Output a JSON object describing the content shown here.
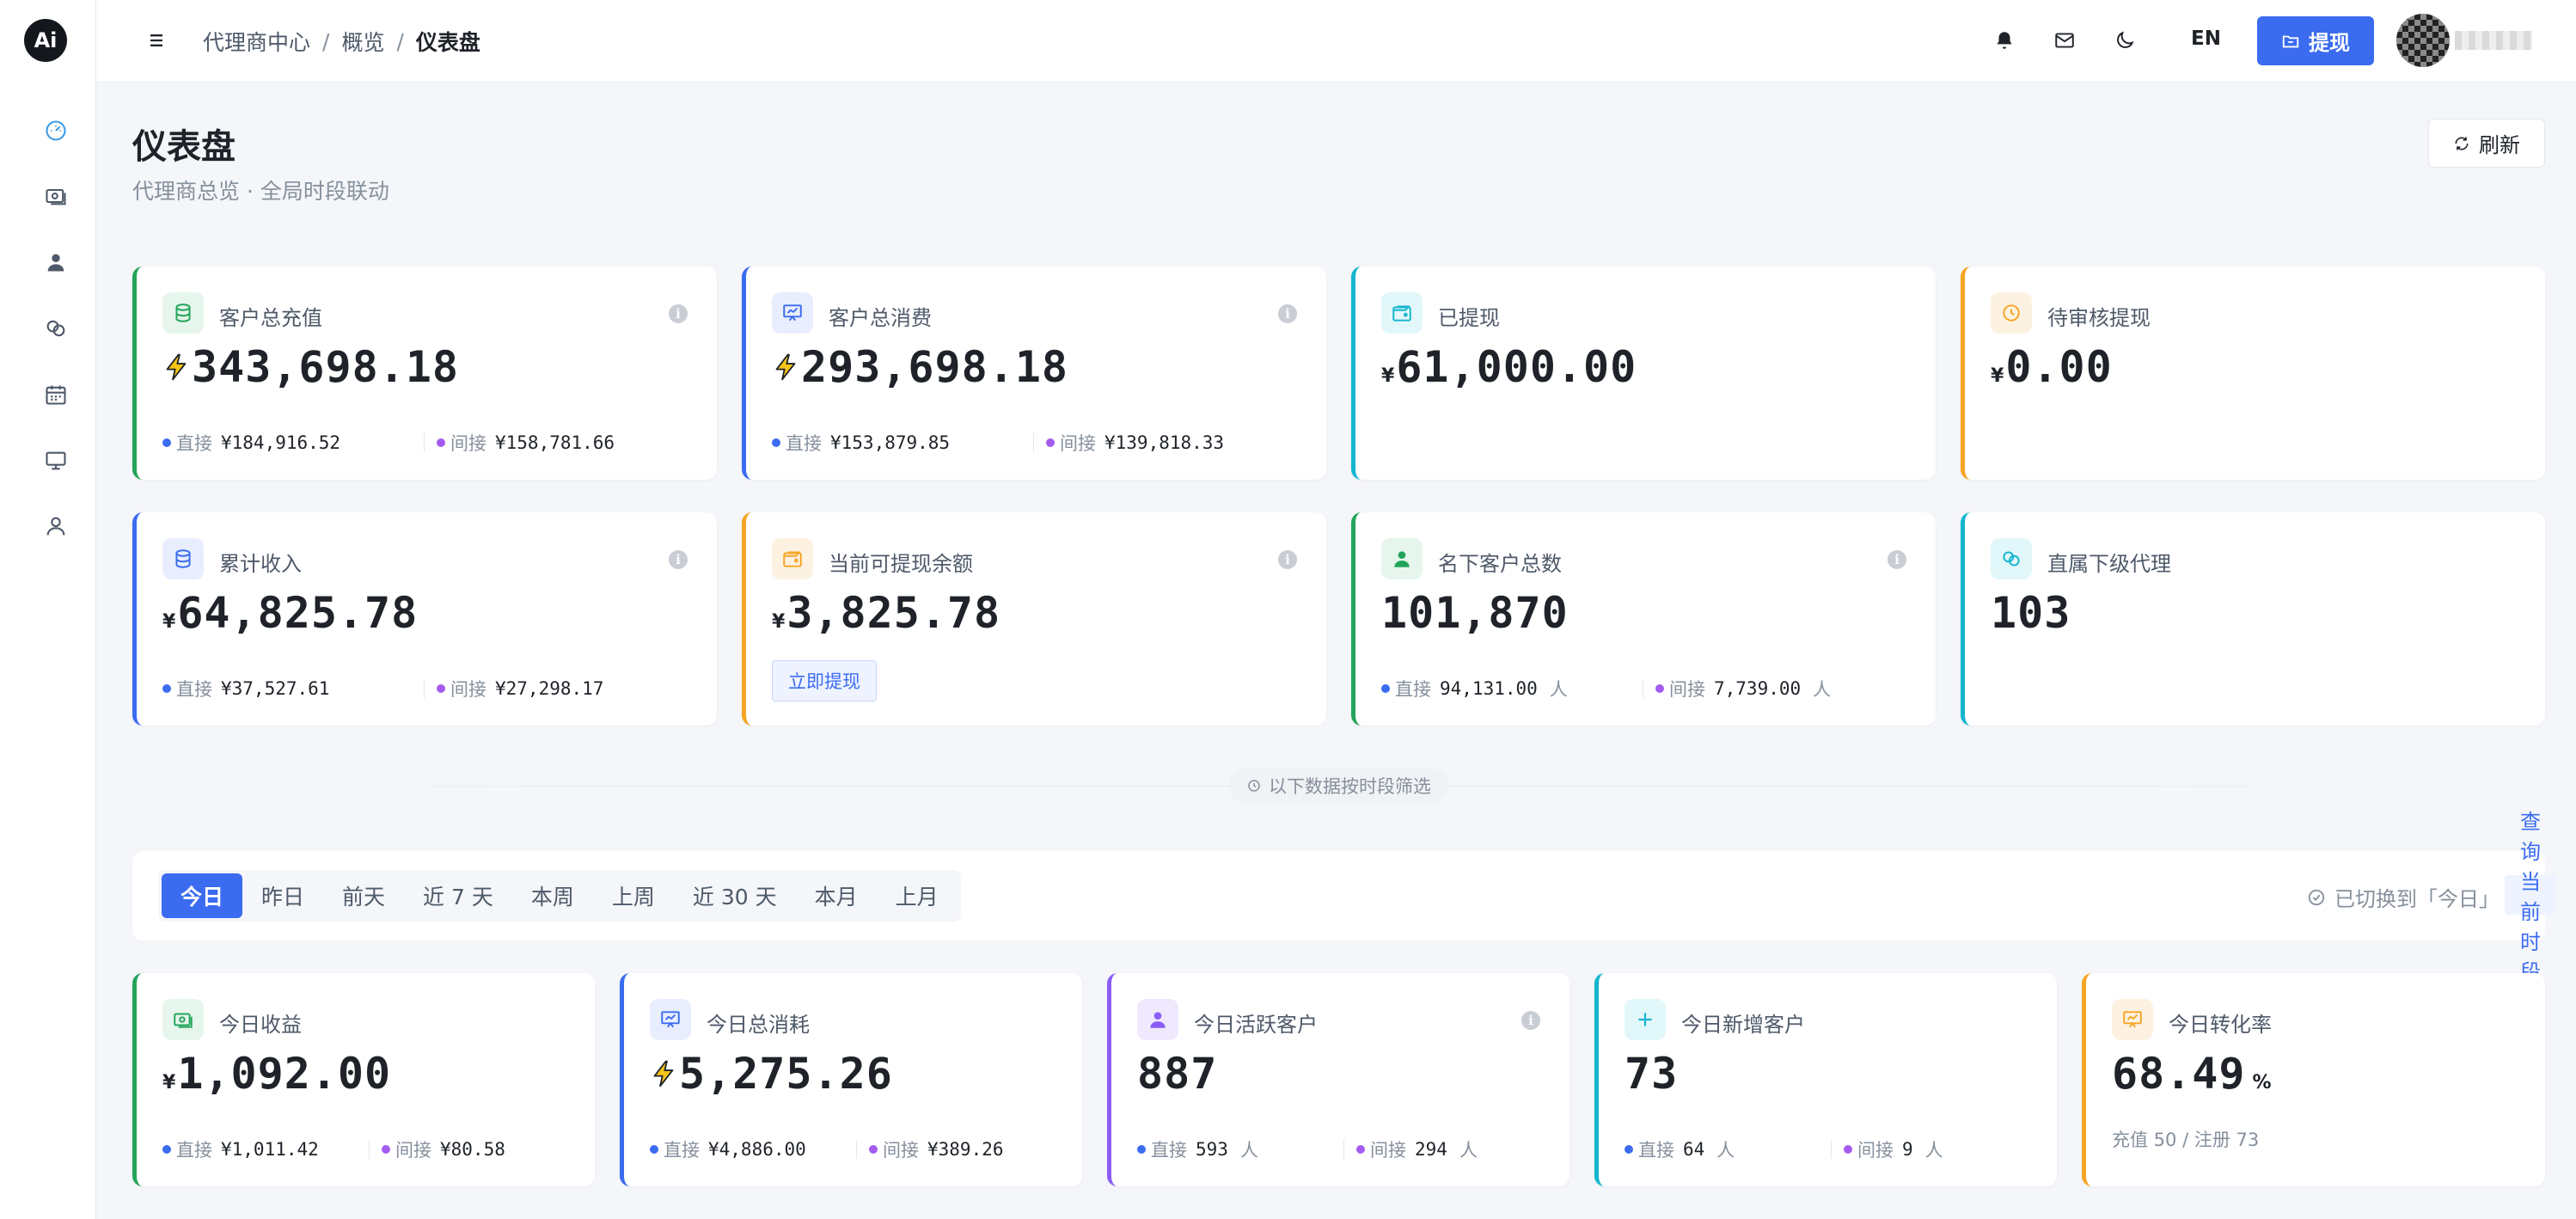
{
  "app": {
    "logo_text": "Ai"
  },
  "colors": {
    "accent": "#3b6cf0",
    "green": "#22a55a",
    "blue": "#3b6cf0",
    "cyan": "#13b5cf",
    "orange": "#f5a524",
    "purple": "#8b5cf6",
    "direct_dot": "#3b6cf0",
    "indirect_dot": "#a45cf0"
  },
  "sidebar": {
    "items": [
      {
        "name": "dashboard",
        "icon": "gauge-icon",
        "active": true
      },
      {
        "name": "finance",
        "icon": "cash-icon"
      },
      {
        "name": "customers",
        "icon": "user-icon"
      },
      {
        "name": "agents",
        "icon": "link-icon"
      },
      {
        "name": "calendar",
        "icon": "calendar-icon"
      },
      {
        "name": "monitor",
        "icon": "monitor-icon"
      },
      {
        "name": "profile",
        "icon": "user-outline-icon"
      }
    ]
  },
  "header": {
    "breadcrumb": [
      "代理商中心",
      "概览",
      "仪表盘"
    ],
    "separator": "/",
    "lang": "EN",
    "withdraw_label": "提现"
  },
  "page": {
    "title": "仪表盘",
    "subtitle": "代理商总览 · 全局时段联动",
    "refresh_label": "刷新"
  },
  "stats": [
    {
      "label": "客户总充值",
      "prefix": "bolt",
      "value": "343,698.18",
      "direct_label": "直接",
      "direct": "¥184,916.52",
      "indirect_label": "间接",
      "indirect": "¥158,781.66"
    },
    {
      "label": "客户总消费",
      "prefix": "bolt",
      "value": "293,698.18",
      "direct_label": "直接",
      "direct": "¥153,879.85",
      "indirect_label": "间接",
      "indirect": "¥139,818.33"
    },
    {
      "label": "已提现",
      "prefix": "¥",
      "value": "61,000.00"
    },
    {
      "label": "待审核提现",
      "prefix": "¥",
      "value": "0.00"
    },
    {
      "label": "累计收入",
      "prefix": "¥",
      "value": "64,825.78",
      "direct_label": "直接",
      "direct": "¥37,527.61",
      "indirect_label": "间接",
      "indirect": "¥27,298.17"
    },
    {
      "label": "当前可提现余额",
      "prefix": "¥",
      "value": "3,825.78",
      "button": "立即提现"
    },
    {
      "label": "名下客户总数",
      "value": "101,870",
      "direct_label": "直接",
      "direct": "94,131.00",
      "direct_unit": "人",
      "indirect_label": "间接",
      "indirect": "7,739.00",
      "indirect_unit": "人"
    },
    {
      "label": "直属下级代理",
      "value": "103"
    }
  ],
  "section_divider": "以下数据按时段筛选",
  "filter": {
    "tabs": [
      "今日",
      "昨日",
      "前天",
      "近 7 天",
      "本周",
      "上周",
      "近 30 天",
      "本月",
      "上月"
    ],
    "active_tab": "今日",
    "switched_text": "已切换到「今日」",
    "query_label": "查询当前时段"
  },
  "today": [
    {
      "label": "今日收益",
      "prefix": "¥",
      "value": "1,092.00",
      "direct_label": "直接",
      "direct": "¥1,011.42",
      "indirect_label": "间接",
      "indirect": "¥80.58"
    },
    {
      "label": "今日总消耗",
      "prefix": "bolt",
      "value": "5,275.26",
      "direct_label": "直接",
      "direct": "¥4,886.00",
      "indirect_label": "间接",
      "indirect": "¥389.26"
    },
    {
      "label": "今日活跃客户",
      "value": "887",
      "direct_label": "直接",
      "direct": "593",
      "direct_unit": "人",
      "indirect_label": "间接",
      "indirect": "294",
      "indirect_unit": "人"
    },
    {
      "label": "今日新增客户",
      "value": "73",
      "direct_label": "直接",
      "direct": "64",
      "direct_unit": "人",
      "indirect_label": "间接",
      "indirect": "9",
      "indirect_unit": "人"
    },
    {
      "label": "今日转化率",
      "value": "68.49",
      "unit": "%",
      "note": "充值 50 / 注册 73"
    }
  ]
}
